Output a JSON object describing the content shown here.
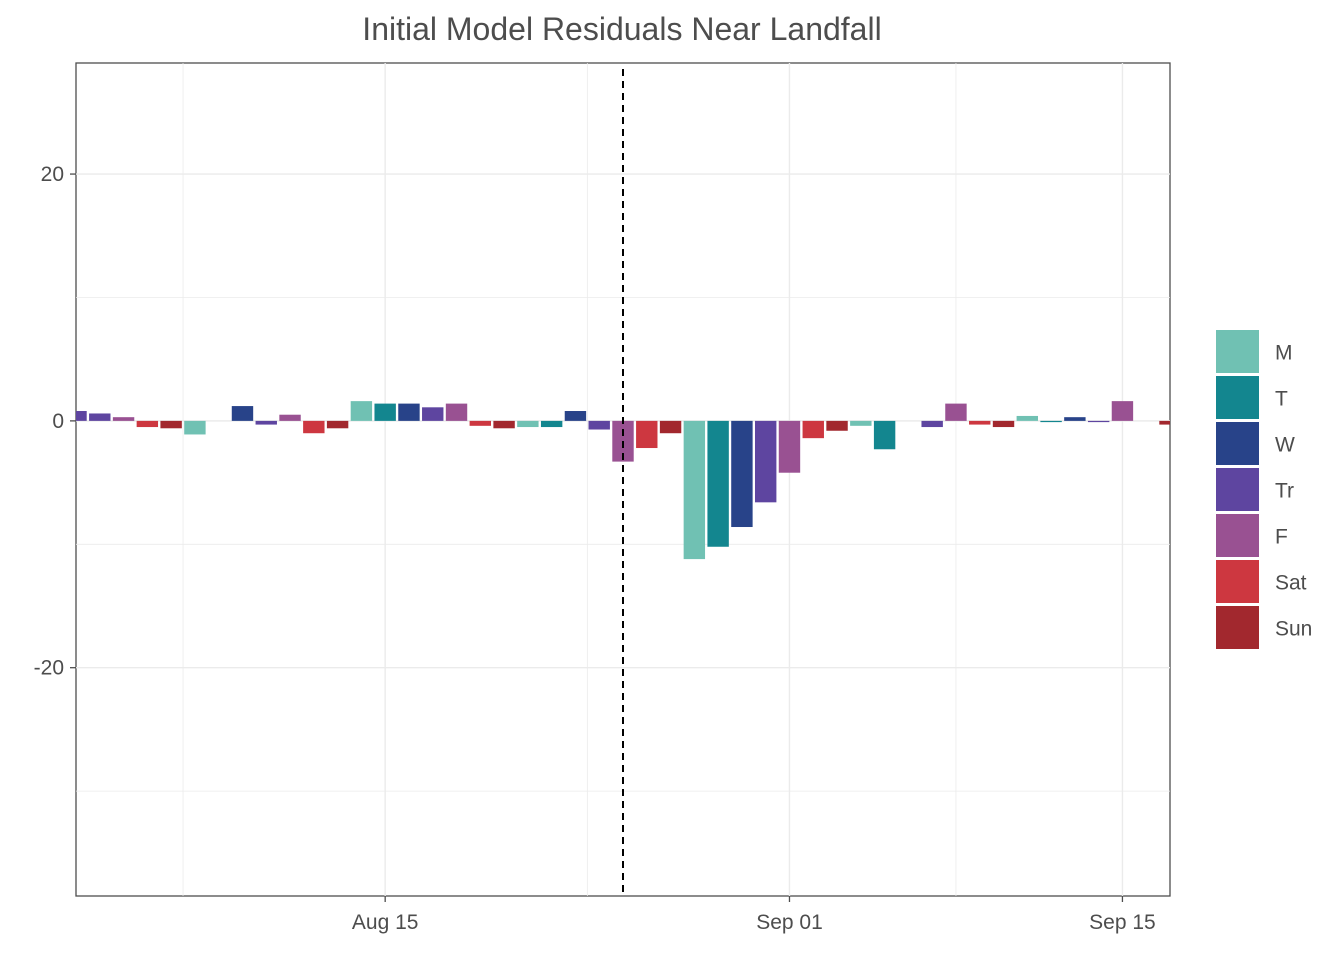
{
  "chart_data": {
    "type": "bar",
    "title": "Initial Model Residuals Near Landfall",
    "xlabel": "",
    "ylabel": "",
    "ylim": [
      -38.5,
      29
    ],
    "xlim": [
      "2025-08-02",
      "2025-09-17"
    ],
    "y_ticks": [
      20,
      0,
      -20
    ],
    "y_tick_labels": [
      "20",
      "0",
      "-20"
    ],
    "x_ticks": [
      "2025-08-15",
      "2025-09-01",
      "2025-09-15"
    ],
    "x_tick_labels": [
      "Aug 15",
      "Sep 01",
      "Sep 15"
    ],
    "grid": true,
    "grid_color": "#ebebeb",
    "vline": "2025-08-25",
    "vline_style": "dashed",
    "legend_position": "right",
    "legend": [
      {
        "label": "M",
        "color": "#70c1b3"
      },
      {
        "label": "T",
        "color": "#13868f"
      },
      {
        "label": "W",
        "color": "#284389"
      },
      {
        "label": "Tr",
        "color": "#5e45a0"
      },
      {
        "label": "F",
        "color": "#995192"
      },
      {
        "label": "Sat",
        "color": "#cd3740"
      },
      {
        "label": "Sun",
        "color": "#a2282e"
      }
    ],
    "bars": [
      {
        "date": "2025-08-02",
        "day": "Tr",
        "value": 0.8
      },
      {
        "date": "2025-08-03",
        "day": "Tr",
        "value": 0.6
      },
      {
        "date": "2025-08-04",
        "day": "F",
        "value": 0.3
      },
      {
        "date": "2025-08-05",
        "day": "Sat",
        "value": -0.5
      },
      {
        "date": "2025-08-06",
        "day": "Sun",
        "value": -0.6
      },
      {
        "date": "2025-08-07",
        "day": "M",
        "value": -1.1
      },
      {
        "date": "2025-08-09",
        "day": "W",
        "value": 1.2
      },
      {
        "date": "2025-08-10",
        "day": "Tr",
        "value": -0.3
      },
      {
        "date": "2025-08-11",
        "day": "F",
        "value": 0.5
      },
      {
        "date": "2025-08-12",
        "day": "Sat",
        "value": -1.0
      },
      {
        "date": "2025-08-13",
        "day": "Sun",
        "value": -0.6
      },
      {
        "date": "2025-08-14",
        "day": "M",
        "value": 1.6
      },
      {
        "date": "2025-08-15",
        "day": "T",
        "value": 1.4
      },
      {
        "date": "2025-08-16",
        "day": "W",
        "value": 1.4
      },
      {
        "date": "2025-08-17",
        "day": "Tr",
        "value": 1.1
      },
      {
        "date": "2025-08-18",
        "day": "F",
        "value": 1.4
      },
      {
        "date": "2025-08-19",
        "day": "Sat",
        "value": -0.4
      },
      {
        "date": "2025-08-20",
        "day": "Sun",
        "value": -0.6
      },
      {
        "date": "2025-08-21",
        "day": "M",
        "value": -0.5
      },
      {
        "date": "2025-08-22",
        "day": "T",
        "value": -0.5
      },
      {
        "date": "2025-08-23",
        "day": "W",
        "value": 0.8
      },
      {
        "date": "2025-08-24",
        "day": "Tr",
        "value": -0.7
      },
      {
        "date": "2025-08-25",
        "day": "F",
        "value": -3.3
      },
      {
        "date": "2025-08-26",
        "day": "Sat",
        "value": -2.2
      },
      {
        "date": "2025-08-27",
        "day": "Sun",
        "value": -1.0
      },
      {
        "date": "2025-08-28",
        "day": "M",
        "value": -11.2
      },
      {
        "date": "2025-08-29",
        "day": "T",
        "value": -10.2
      },
      {
        "date": "2025-08-30",
        "day": "W",
        "value": -8.6
      },
      {
        "date": "2025-08-31",
        "day": "Tr",
        "value": -6.6
      },
      {
        "date": "2025-09-01",
        "day": "F",
        "value": -4.2
      },
      {
        "date": "2025-09-02",
        "day": "Sat",
        "value": -1.4
      },
      {
        "date": "2025-09-03",
        "day": "Sun",
        "value": -0.8
      },
      {
        "date": "2025-09-04",
        "day": "M",
        "value": -0.4
      },
      {
        "date": "2025-09-05",
        "day": "T",
        "value": -2.3
      },
      {
        "date": "2025-09-07",
        "day": "Tr",
        "value": -0.5
      },
      {
        "date": "2025-09-08",
        "day": "F",
        "value": 1.4
      },
      {
        "date": "2025-09-09",
        "day": "Sat",
        "value": -0.3
      },
      {
        "date": "2025-09-10",
        "day": "Sun",
        "value": -0.5
      },
      {
        "date": "2025-09-11",
        "day": "M",
        "value": 0.4
      },
      {
        "date": "2025-09-12",
        "day": "T",
        "value": -0.1
      },
      {
        "date": "2025-09-13",
        "day": "W",
        "value": 0.3
      },
      {
        "date": "2025-09-14",
        "day": "Tr",
        "value": -0.1
      },
      {
        "date": "2025-09-15",
        "day": "F",
        "value": 1.6
      },
      {
        "date": "2025-09-17",
        "day": "Sun",
        "value": -0.3
      }
    ]
  }
}
